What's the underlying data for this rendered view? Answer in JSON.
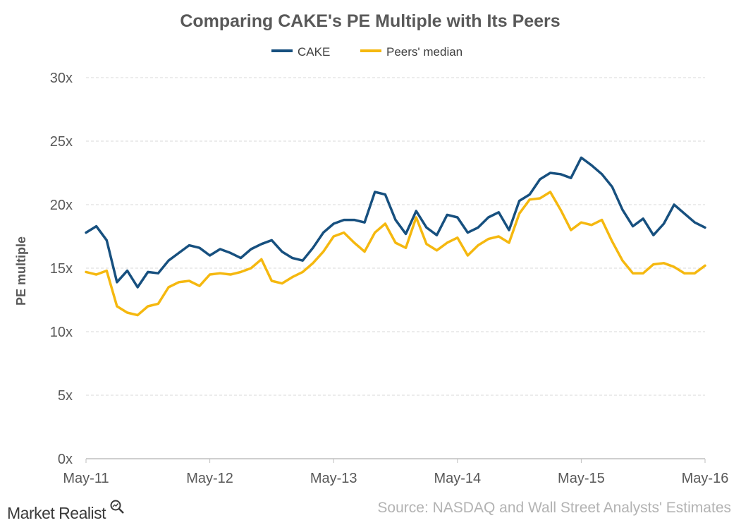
{
  "chart_data": {
    "type": "line",
    "title": "Comparing CAKE's PE Multiple with Its Peers",
    "ylabel": "PE multiple",
    "xlabel": "",
    "ylim": [
      0,
      30
    ],
    "yticks": [
      0,
      5,
      10,
      15,
      20,
      25,
      30
    ],
    "ytick_labels": [
      "0x",
      "5x",
      "10x",
      "15x",
      "20x",
      "25x",
      "30x"
    ],
    "xticks": [
      "May-11",
      "May-12",
      "May-13",
      "May-14",
      "May-15",
      "May-16"
    ],
    "x_range": [
      "2011-05",
      "2016-05"
    ],
    "grid": true,
    "legend_position": "top",
    "x": [
      "2011-05",
      "2011-06",
      "2011-07",
      "2011-08",
      "2011-09",
      "2011-10",
      "2011-11",
      "2011-12",
      "2012-01",
      "2012-02",
      "2012-03",
      "2012-04",
      "2012-05",
      "2012-06",
      "2012-07",
      "2012-08",
      "2012-09",
      "2012-10",
      "2012-11",
      "2012-12",
      "2013-01",
      "2013-02",
      "2013-03",
      "2013-04",
      "2013-05",
      "2013-06",
      "2013-07",
      "2013-08",
      "2013-09",
      "2013-10",
      "2013-11",
      "2013-12",
      "2014-01",
      "2014-02",
      "2014-03",
      "2014-04",
      "2014-05",
      "2014-06",
      "2014-07",
      "2014-08",
      "2014-09",
      "2014-10",
      "2014-11",
      "2014-12",
      "2015-01",
      "2015-02",
      "2015-03",
      "2015-04",
      "2015-05",
      "2015-06",
      "2015-07",
      "2015-08",
      "2015-09",
      "2015-10",
      "2015-11",
      "2015-12",
      "2016-01",
      "2016-02",
      "2016-03",
      "2016-04",
      "2016-05"
    ],
    "series": [
      {
        "name": "CAKE",
        "color": "#17507f",
        "values": [
          17.8,
          18.3,
          17.2,
          13.9,
          14.8,
          13.5,
          14.7,
          14.6,
          15.6,
          16.2,
          16.8,
          16.6,
          16.0,
          16.5,
          16.2,
          15.8,
          16.5,
          16.9,
          17.2,
          16.3,
          15.8,
          15.6,
          16.6,
          17.8,
          18.5,
          18.8,
          18.8,
          18.6,
          21.0,
          20.8,
          18.8,
          17.7,
          19.5,
          18.2,
          17.6,
          19.2,
          19.0,
          17.8,
          18.2,
          19.0,
          19.4,
          18.0,
          20.3,
          20.8,
          22.0,
          22.5,
          22.4,
          22.1,
          23.7,
          23.1,
          22.4,
          21.4,
          19.6,
          18.3,
          18.9,
          17.6,
          18.5,
          20.0,
          19.3,
          18.6,
          18.2
        ]
      },
      {
        "name": "Peers' median",
        "color": "#f5b80f",
        "values": [
          14.7,
          14.5,
          14.8,
          12.0,
          11.5,
          11.3,
          12.0,
          12.2,
          13.5,
          13.9,
          14.0,
          13.6,
          14.5,
          14.6,
          14.5,
          14.7,
          15.0,
          15.7,
          14.0,
          13.8,
          14.3,
          14.7,
          15.4,
          16.3,
          17.5,
          17.8,
          17.0,
          16.3,
          17.8,
          18.5,
          17.0,
          16.6,
          19.0,
          16.9,
          16.4,
          17.0,
          17.4,
          16.0,
          16.8,
          17.3,
          17.5,
          17.0,
          19.3,
          20.4,
          20.5,
          21.0,
          19.6,
          18.0,
          18.6,
          18.4,
          18.8,
          17.1,
          15.6,
          14.6,
          14.6,
          15.3,
          15.4,
          15.1,
          14.6,
          14.6,
          15.2
        ]
      }
    ]
  },
  "footer": {
    "logo_text": "Market Realist",
    "source": "Source: NASDAQ and Wall Street Analysts' Estimates"
  },
  "colors": {
    "gridline": "#d9d9d9",
    "axis": "#bfbfbf",
    "tick_text": "#595959",
    "title_text": "#595959"
  }
}
